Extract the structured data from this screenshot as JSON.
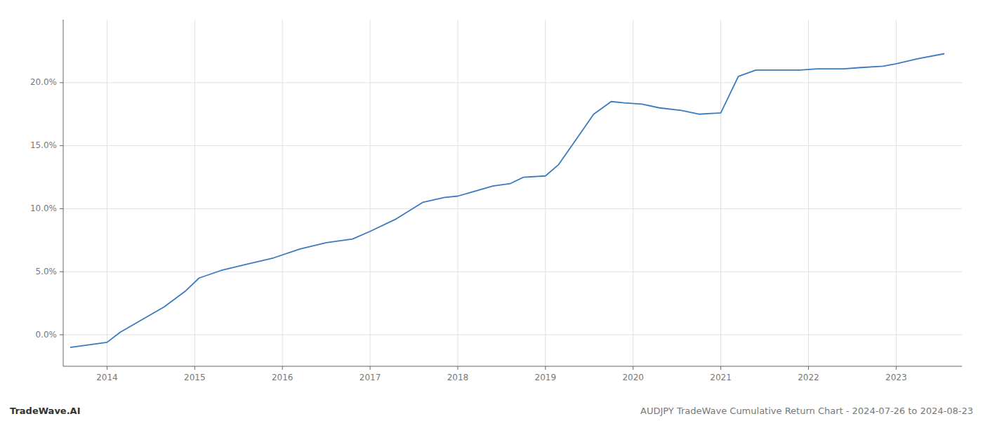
{
  "chart_data": {
    "type": "line",
    "x": [
      2013.58,
      2014.0,
      2014.15,
      2014.4,
      2014.65,
      2014.9,
      2015.05,
      2015.3,
      2015.6,
      2015.9,
      2016.2,
      2016.5,
      2016.8,
      2017.0,
      2017.3,
      2017.6,
      2017.85,
      2018.0,
      2018.15,
      2018.4,
      2018.6,
      2018.75,
      2019.0,
      2019.15,
      2019.35,
      2019.55,
      2019.75,
      2019.9,
      2020.1,
      2020.3,
      2020.55,
      2020.75,
      2021.0,
      2021.2,
      2021.4,
      2021.6,
      2021.9,
      2022.1,
      2022.4,
      2022.6,
      2022.85,
      2023.0,
      2023.25,
      2023.55
    ],
    "values": [
      -1.0,
      -0.6,
      0.2,
      1.2,
      2.2,
      3.5,
      4.5,
      5.1,
      5.6,
      6.1,
      6.8,
      7.3,
      7.6,
      8.2,
      9.2,
      10.5,
      10.9,
      11.0,
      11.3,
      11.8,
      12.0,
      12.5,
      12.6,
      13.5,
      15.5,
      17.5,
      18.5,
      18.4,
      18.3,
      18.0,
      17.8,
      17.5,
      17.6,
      20.5,
      21.0,
      21.0,
      21.0,
      21.1,
      21.1,
      21.2,
      21.3,
      21.5,
      21.9,
      22.3
    ],
    "color": "#3a7abf",
    "xlim": [
      2013.5,
      2023.75
    ],
    "ylim": [
      -2.5,
      25.0
    ],
    "xticks": [
      2014,
      2015,
      2016,
      2017,
      2018,
      2019,
      2020,
      2021,
      2022,
      2023
    ],
    "yticks": [
      {
        "value": 0.0,
        "label": "0.0%"
      },
      {
        "value": 5.0,
        "label": "5.0%"
      },
      {
        "value": 10.0,
        "label": "10.0%"
      },
      {
        "value": 15.0,
        "label": "15.0%"
      },
      {
        "value": 20.0,
        "label": "20.0%"
      }
    ],
    "grid": true,
    "annotations": [
      "TradeWave.AI",
      "AUDJPY TradeWave Cumulative Return Chart - 2024-07-26 to 2024-08-23"
    ]
  }
}
